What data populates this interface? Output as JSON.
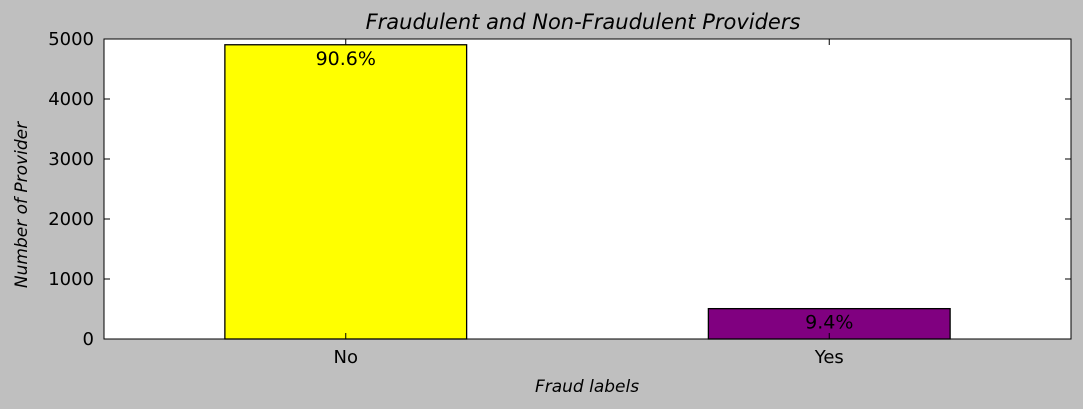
{
  "chart_data": {
    "type": "bar",
    "title": "Fraudulent and Non-Fraudulent Providers",
    "xlabel": "Fraud labels",
    "ylabel": "Number of Provider",
    "categories": [
      "No",
      "Yes"
    ],
    "values": [
      4904,
      506
    ],
    "data_labels": [
      "90.6%",
      "9.4%"
    ],
    "colors": [
      "#ffff00",
      "#800080"
    ],
    "ylim": [
      0,
      5000
    ],
    "yticks": [
      0,
      1000,
      2000,
      3000,
      4000,
      5000
    ],
    "grid": false,
    "legend": "none",
    "background": "#bfbfbf",
    "plot_background": "#ffffff"
  }
}
